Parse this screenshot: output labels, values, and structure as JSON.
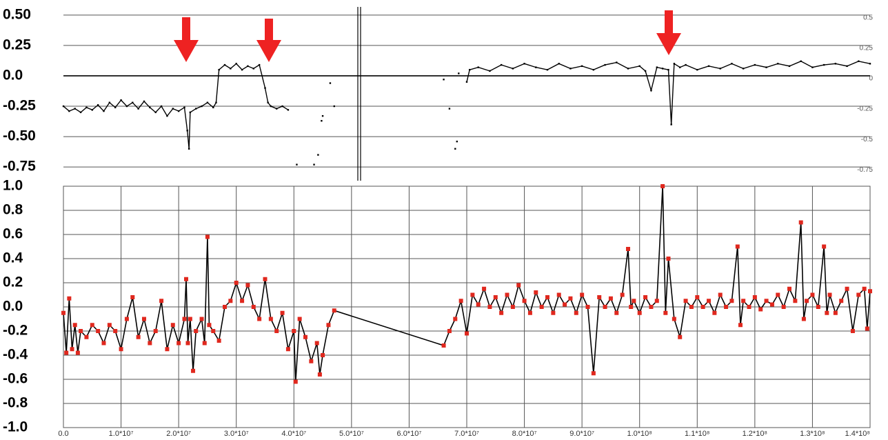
{
  "chart_data": [
    {
      "type": "line",
      "color": "#000000",
      "grid": true,
      "x": [
        0,
        1000000,
        2000000,
        3000000,
        4000000,
        5000000,
        6000000,
        7000000,
        8000000,
        9000000,
        10000000,
        11000000,
        12000000,
        13000000,
        14000000,
        15000000,
        16000000,
        17000000,
        18000000,
        19000000,
        20000000,
        21000000,
        21500000,
        21800000,
        22000000,
        23000000,
        24000000,
        25000000,
        26000000,
        26500000,
        27000000,
        28000000,
        29000000,
        30000000,
        31000000,
        32000000,
        33000000,
        34000000,
        35000000,
        35500000,
        36000000,
        37000000,
        38000000,
        39000000,
        null,
        40500000,
        null,
        43500000,
        null,
        44200000,
        null,
        44800000,
        null,
        45000000,
        null,
        46300000,
        null,
        47000000,
        null,
        66000000,
        null,
        67000000,
        null,
        68000000,
        null,
        68300000,
        null,
        68600000,
        null,
        70000000,
        70500000,
        72000000,
        74000000,
        76000000,
        78000000,
        80000000,
        82000000,
        84000000,
        86000000,
        88000000,
        90000000,
        92000000,
        94000000,
        96000000,
        98000000,
        100000000,
        101000000,
        102000000,
        103000000,
        104000000,
        105000000,
        105500000,
        106000000,
        107000000,
        108000000,
        110000000,
        112000000,
        114000000,
        116000000,
        118000000,
        120000000,
        122000000,
        124000000,
        126000000,
        128000000,
        130000000,
        132000000,
        134000000,
        136000000,
        138000000,
        140000000
      ],
      "values": [
        -0.25,
        -0.29,
        -0.27,
        -0.3,
        -0.26,
        -0.28,
        -0.24,
        -0.29,
        -0.22,
        -0.26,
        -0.2,
        -0.25,
        -0.22,
        -0.27,
        -0.21,
        -0.26,
        -0.3,
        -0.25,
        -0.33,
        -0.27,
        -0.29,
        -0.26,
        -0.45,
        -0.6,
        -0.3,
        -0.27,
        -0.25,
        -0.22,
        -0.26,
        -0.22,
        0.05,
        0.09,
        0.06,
        0.1,
        0.05,
        0.08,
        0.06,
        0.09,
        -0.1,
        -0.22,
        -0.25,
        -0.27,
        -0.25,
        -0.28,
        null,
        -0.73,
        null,
        -0.73,
        null,
        -0.65,
        null,
        -0.37,
        null,
        -0.33,
        null,
        -0.06,
        null,
        -0.25,
        null,
        -0.03,
        null,
        -0.27,
        null,
        -0.6,
        null,
        -0.54,
        null,
        0.02,
        null,
        -0.05,
        0.05,
        0.07,
        0.04,
        0.09,
        0.06,
        0.1,
        0.07,
        0.05,
        0.1,
        0.06,
        0.08,
        0.05,
        0.09,
        0.11,
        0.06,
        0.08,
        0.04,
        -0.12,
        0.07,
        0.06,
        0.05,
        -0.4,
        0.1,
        0.07,
        0.09,
        0.05,
        0.08,
        0.06,
        0.1,
        0.06,
        0.09,
        0.07,
        0.1,
        0.08,
        0.12,
        0.07,
        0.09,
        0.1,
        0.08,
        0.12,
        0.1
      ],
      "xlim": [
        0,
        140000000
      ],
      "ylim": [
        -0.8,
        0.55
      ],
      "yticks": [
        {
          "value": 0.5,
          "label": "0.50"
        },
        0.25,
        {
          "value": 0,
          "label": "0.0"
        },
        -0.25,
        {
          "value": -0.5,
          "label": "-0.50"
        },
        -0.75
      ],
      "y2lim": [
        -0.8,
        0.55
      ],
      "y2ticks": [
        0.5,
        0.25,
        0,
        -0.25,
        -0.5,
        -0.75
      ]
    },
    {
      "type": "line",
      "color": "#000000",
      "marker_color": "#e0281e",
      "grid": true,
      "x": [
        0,
        500000,
        1000000,
        1500000,
        2000000,
        2500000,
        3000000,
        4000000,
        5000000,
        6000000,
        7000000,
        8000000,
        9000000,
        10000000,
        11000000,
        12000000,
        13000000,
        14000000,
        15000000,
        16000000,
        17000000,
        18000000,
        19000000,
        20000000,
        21000000,
        21300000,
        21600000,
        22000000,
        22500000,
        23000000,
        24000000,
        24500000,
        25000000,
        25300000,
        26000000,
        27000000,
        28000000,
        29000000,
        30000000,
        31000000,
        32000000,
        33000000,
        34000000,
        35000000,
        36000000,
        37000000,
        38000000,
        39000000,
        40000000,
        40300000,
        41000000,
        42000000,
        43000000,
        44000000,
        44500000,
        45000000,
        46000000,
        47000000,
        66000000,
        67000000,
        68000000,
        69000000,
        70000000,
        71000000,
        72000000,
        73000000,
        74000000,
        75000000,
        76000000,
        77000000,
        78000000,
        79000000,
        80000000,
        81000000,
        82000000,
        83000000,
        84000000,
        85000000,
        86000000,
        87000000,
        88000000,
        89000000,
        90000000,
        91000000,
        92000000,
        93000000,
        94000000,
        95000000,
        96000000,
        97000000,
        98000000,
        98500000,
        99000000,
        100000000,
        101000000,
        102000000,
        103000000,
        104000000,
        104500000,
        105000000,
        106000000,
        107000000,
        108000000,
        109000000,
        110000000,
        111000000,
        112000000,
        113000000,
        114000000,
        115000000,
        116000000,
        117000000,
        117500000,
        118000000,
        119000000,
        120000000,
        121000000,
        122000000,
        123000000,
        124000000,
        125000000,
        126000000,
        127000000,
        128000000,
        128500000,
        129000000,
        130000000,
        131000000,
        132000000,
        132500000,
        133000000,
        134000000,
        135000000,
        136000000,
        137000000,
        138000000,
        139000000,
        139500000,
        140000000
      ],
      "values": [
        -0.05,
        -0.38,
        0.07,
        -0.35,
        -0.15,
        -0.38,
        -0.2,
        -0.25,
        -0.15,
        -0.2,
        -0.3,
        -0.15,
        -0.2,
        -0.35,
        -0.1,
        0.08,
        -0.25,
        -0.1,
        -0.3,
        -0.2,
        0.05,
        -0.35,
        -0.15,
        -0.3,
        -0.1,
        0.23,
        -0.3,
        -0.1,
        -0.53,
        -0.2,
        -0.1,
        -0.3,
        0.58,
        -0.15,
        -0.2,
        -0.28,
        0.0,
        0.05,
        0.2,
        0.05,
        0.18,
        0.0,
        -0.1,
        0.23,
        -0.1,
        -0.2,
        -0.05,
        -0.35,
        -0.2,
        -0.62,
        -0.1,
        -0.25,
        -0.45,
        -0.3,
        -0.56,
        -0.4,
        -0.15,
        -0.03,
        -0.32,
        -0.2,
        -0.1,
        0.05,
        -0.22,
        0.1,
        0.02,
        0.15,
        0.0,
        0.08,
        -0.05,
        0.1,
        0.0,
        0.18,
        0.05,
        -0.05,
        0.12,
        0.0,
        0.08,
        -0.05,
        0.1,
        0.02,
        0.07,
        -0.05,
        0.1,
        0.0,
        -0.55,
        0.08,
        0.0,
        0.07,
        -0.05,
        0.1,
        0.48,
        0.0,
        0.05,
        -0.05,
        0.08,
        0.0,
        0.05,
        1.0,
        -0.05,
        0.4,
        -0.1,
        -0.25,
        0.05,
        0.0,
        0.08,
        0.0,
        0.05,
        -0.05,
        0.1,
        0.0,
        0.05,
        0.5,
        -0.15,
        0.05,
        0.0,
        0.08,
        -0.02,
        0.05,
        0.02,
        0.1,
        0.0,
        0.15,
        0.05,
        0.7,
        -0.1,
        0.05,
        0.1,
        0.0,
        0.5,
        -0.05,
        0.1,
        -0.05,
        0.05,
        0.15,
        -0.2,
        0.1,
        0.15,
        -0.18,
        0.13
      ],
      "xlim": [
        0,
        140000000
      ],
      "xticks": [
        {
          "value": 0,
          "label": "0.0"
        },
        {
          "value": 10000000,
          "label": "1.0*10⁷"
        },
        {
          "value": 20000000,
          "label": "2.0*10⁷"
        },
        {
          "value": 30000000,
          "label": "3.0*10⁷"
        },
        {
          "value": 40000000,
          "label": "4.0*10⁷"
        },
        {
          "value": 50000000,
          "label": "5.0*10⁷"
        },
        {
          "value": 60000000,
          "label": "6.0*10⁷"
        },
        {
          "value": 70000000,
          "label": "7.0*10⁷"
        },
        {
          "value": 80000000,
          "label": "8.0*10⁷"
        },
        {
          "value": 90000000,
          "label": "9.0*10⁷"
        },
        {
          "value": 100000000,
          "label": "1.0*10⁸"
        },
        {
          "value": 110000000,
          "label": "1.1*10⁸"
        },
        {
          "value": 120000000,
          "label": "1.2*10⁸"
        },
        {
          "value": 130000000,
          "label": "1.3*10⁸"
        },
        {
          "value": 140000000,
          "label": "1.4*10⁸"
        }
      ],
      "ylim": [
        -1,
        1
      ],
      "yticks": [
        {
          "value": 1,
          "label": "1.0"
        },
        0.8,
        0.6,
        0.4,
        0.2,
        {
          "value": 0,
          "label": "0.0"
        },
        -0.2,
        -0.4,
        -0.6,
        -0.8,
        {
          "value": -1,
          "label": "-1.0"
        }
      ]
    }
  ]
}
